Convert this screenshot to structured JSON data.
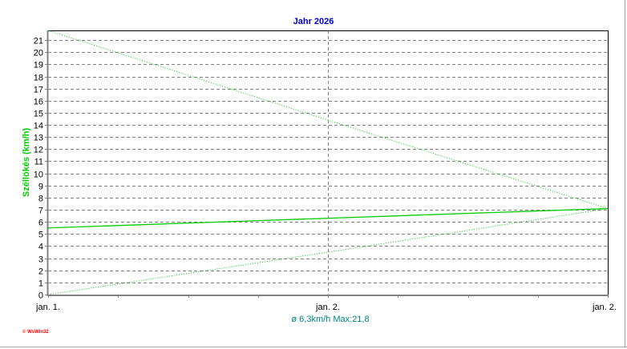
{
  "chart_data": {
    "type": "line",
    "title": "Jahr 2026",
    "ylabel": "Széllökés (km/h)",
    "xlabel": "",
    "x_tick_labels": [
      "jan. 1.",
      "jan. 2.",
      "jan. 2."
    ],
    "x": [
      0,
      1,
      2
    ],
    "ylim": [
      0,
      21.8
    ],
    "yticks": [
      0,
      1,
      2,
      3,
      4,
      5,
      6,
      7,
      8,
      9,
      10,
      11,
      12,
      13,
      14,
      15,
      16,
      17,
      18,
      19,
      20,
      21
    ],
    "grid": true,
    "series": [
      {
        "role": "max",
        "style": "dotted",
        "values": [
          21.8,
          14.4,
          7.1
        ]
      },
      {
        "role": "average",
        "style": "solid",
        "values": [
          5.5,
          6.3,
          7.1
        ]
      },
      {
        "role": "min",
        "style": "dotted",
        "values": [
          0,
          3.5,
          7.1
        ]
      }
    ],
    "summary": "ø 6,3km/h  Max:21,8",
    "colors": {
      "title": "#0000cc",
      "ylabel": "#00cc00",
      "series": "#00cc00",
      "summary": "#008080",
      "logo": "#ff0000"
    }
  },
  "footer": {
    "logo": "© WsWin32"
  }
}
